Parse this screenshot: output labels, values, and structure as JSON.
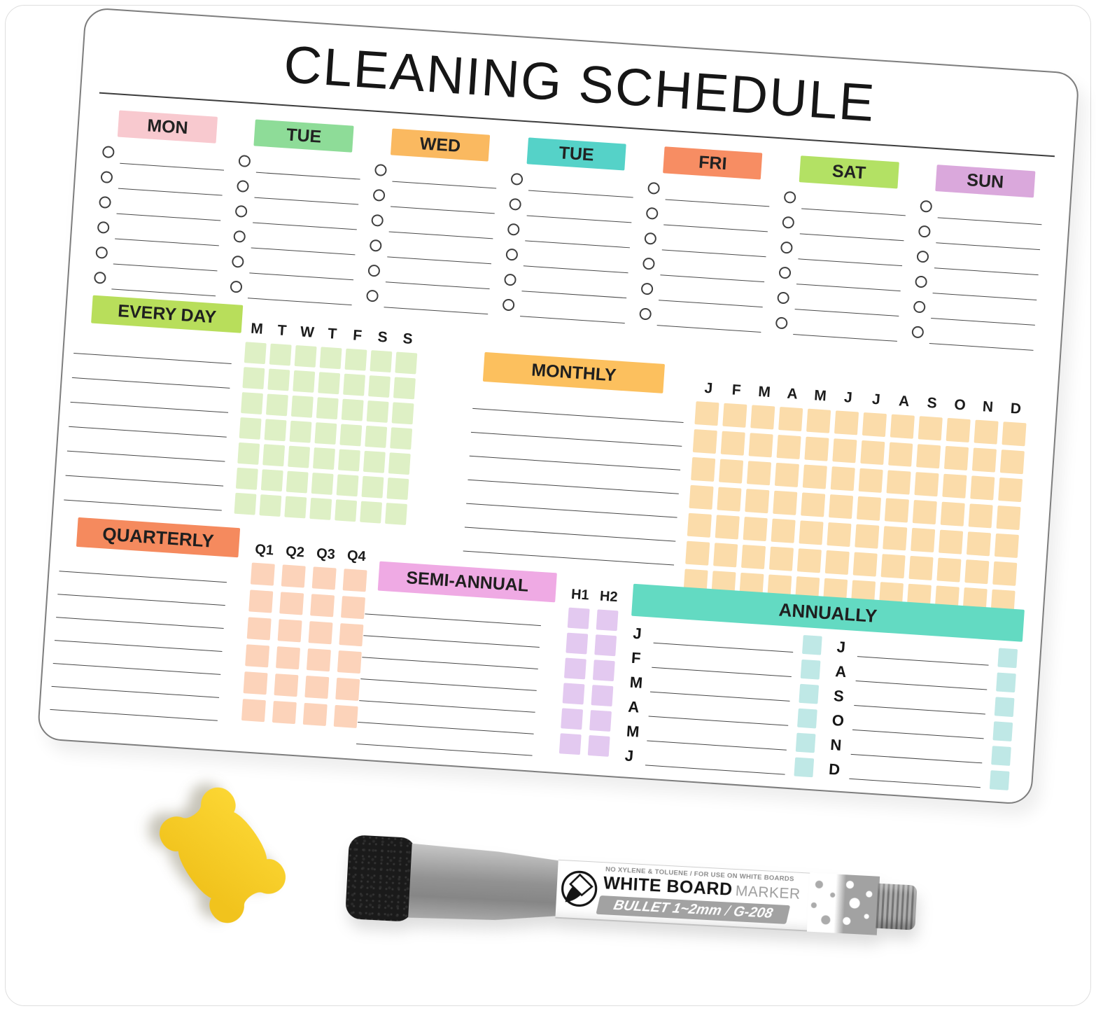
{
  "board": {
    "title": "CLEANING SCHEDULE",
    "week": {
      "rows_per_day": 6,
      "days": [
        {
          "label": "MON",
          "color": "#f8c9cf"
        },
        {
          "label": "TUE",
          "color": "#8edc98"
        },
        {
          "label": "WED",
          "color": "#fab960"
        },
        {
          "label": "TUE",
          "color": "#55d2c8"
        },
        {
          "label": "FRI",
          "color": "#f78d63"
        },
        {
          "label": "SAT",
          "color": "#b3e164"
        },
        {
          "label": "SUN",
          "color": "#daa8dc"
        }
      ]
    },
    "every_day": {
      "label": "EVERY DAY",
      "color": "#b8de5b",
      "line_count": 7,
      "grid": {
        "columns": [
          "M",
          "T",
          "W",
          "T",
          "F",
          "S",
          "S"
        ],
        "rows": 7,
        "cell_color": "#def0c5"
      }
    },
    "monthly": {
      "label": "MONTHLY",
      "color": "#fcc05e",
      "line_count": 7,
      "grid": {
        "columns": [
          "J",
          "F",
          "M",
          "A",
          "M",
          "J",
          "J",
          "A",
          "S",
          "O",
          "N",
          "D"
        ],
        "rows": 7,
        "cell_color": "#fbdcaa"
      }
    },
    "quarterly": {
      "label": "QUARTERLY",
      "color": "#f58a5e",
      "line_count": 7,
      "grid": {
        "columns": [
          "Q1",
          "Q2",
          "Q3",
          "Q4"
        ],
        "rows": 6,
        "cell_color": "#fcd3ba"
      }
    },
    "semi_annual": {
      "label": "SEMI-ANNUAL",
      "color": "#efaae4",
      "line_count": 7,
      "grid": {
        "columns": [
          "H1",
          "H2"
        ],
        "rows": 6,
        "cell_color": "#e3c9f0"
      }
    },
    "annually": {
      "label": "ANNUALLY",
      "color": "#63dac2",
      "cell_color": "#bfe8e6",
      "groups": [
        [
          "J",
          "F",
          "M",
          "A",
          "M",
          "J"
        ],
        [
          "J",
          "A",
          "S",
          "O",
          "N",
          "D"
        ]
      ]
    }
  },
  "marker": {
    "caption": "NO XYLENE & TOLUENE / FOR USE ON WHITE BOARDS",
    "brand": "WHITE BOARD",
    "brand_suffix": "MARKER",
    "spec": "BULLET 1~2mm",
    "model": "G-208"
  },
  "eraser": {
    "color_top": "#fcd734",
    "color_bottom": "#f1c31d"
  }
}
